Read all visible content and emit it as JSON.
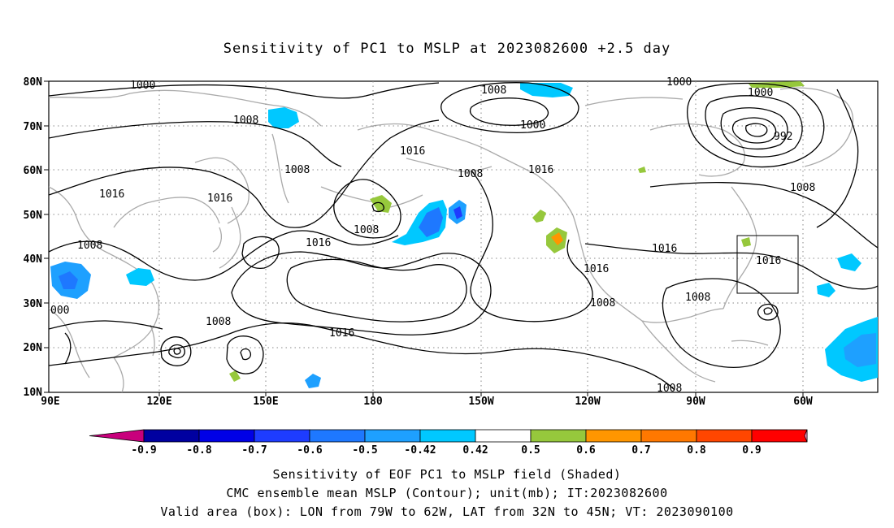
{
  "title": "Sensitivity of PC1 to MSLP at 2023082600 +2.5 day",
  "lat_labels": [
    "80N",
    "70N",
    "60N",
    "50N",
    "40N",
    "30N",
    "20N",
    "10N"
  ],
  "lon_labels": [
    "90E",
    "120E",
    "150E",
    "180",
    "150W",
    "120W",
    "90W",
    "60W"
  ],
  "contour_labels": [
    "1000",
    "1008",
    "1000",
    "1016",
    "1008",
    "1016",
    "1016",
    "1008",
    "1000",
    "1008",
    "1008",
    "1000",
    "992",
    "1008",
    "1016",
    "1008",
    "1016",
    "1016",
    "1016",
    "1008",
    "1008",
    "1016",
    "1008",
    "1008",
    "000"
  ],
  "colorbar": {
    "labels": [
      "-0.9",
      "-0.8",
      "-0.7",
      "-0.6",
      "-0.5",
      "-0.42",
      "0.42",
      "0.5",
      "0.6",
      "0.7",
      "0.8",
      "0.9"
    ],
    "colors": {
      "low_end": "#c8007c",
      "bins": [
        "#0000a0",
        "#0000e6",
        "#1e3cff",
        "#1e78ff",
        "#1ea0ff",
        "#00c8ff",
        "#ffffff",
        "#96c83c",
        "#ff9600",
        "#ff7800",
        "#ff4600",
        "#ff0000"
      ],
      "high_end": "#ff96c8"
    }
  },
  "valid_box": {
    "lon": [
      -79,
      -62
    ],
    "lat": [
      32,
      45
    ]
  },
  "captions": {
    "line1": "Sensitivity of EOF PC1 to MSLP field (Shaded)",
    "line2": "CMC ensemble mean MSLP (Contour); unit(mb); IT:2023082600",
    "line3": "Valid area (box): LON from 79W to 62W, LAT from 32N to 45N; VT: 2023090100"
  }
}
